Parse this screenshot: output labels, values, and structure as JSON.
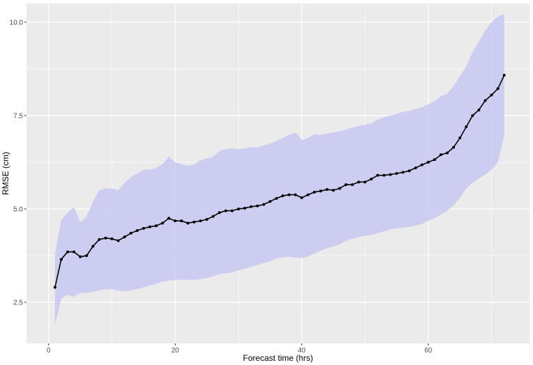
{
  "colors": {
    "panel": "#ebebeb",
    "grid": "#ffffff",
    "ribbon": "#c8c8f2",
    "line": "#000000"
  },
  "chart_data": {
    "type": "line",
    "title": "",
    "xlabel": "Forecast time (hrs)",
    "ylabel": "RMSE (cm)",
    "xlim": [
      -3.5,
      76
    ],
    "ylim": [
      1.4,
      10.5
    ],
    "x_ticks": [
      0,
      20,
      40,
      60
    ],
    "y_ticks": [
      2.5,
      5.0,
      7.5,
      10.0
    ],
    "x_tick_labels": [
      "0",
      "20",
      "40",
      "60"
    ],
    "y_tick_labels": [
      "2.5",
      "5.0",
      "7.5",
      "10.0"
    ],
    "grid": true,
    "legend": "none",
    "series": [
      {
        "x": [
          1,
          2,
          3,
          4,
          5,
          6,
          7,
          8,
          9,
          10,
          11,
          12,
          13,
          14,
          15,
          16,
          17,
          18,
          19,
          20,
          21,
          22,
          23,
          24,
          25,
          26,
          27,
          28,
          29,
          30,
          31,
          32,
          33,
          34,
          35,
          36,
          37,
          38,
          39,
          40,
          41,
          42,
          43,
          44,
          45,
          46,
          47,
          48,
          49,
          50,
          51,
          52,
          53,
          54,
          55,
          56,
          57,
          58,
          59,
          60,
          61,
          62,
          63,
          64,
          65,
          66,
          67,
          68,
          69,
          70,
          71,
          72
        ],
        "y": [
          2.9,
          3.65,
          3.85,
          3.85,
          3.72,
          3.75,
          4.0,
          4.18,
          4.22,
          4.2,
          4.15,
          4.25,
          4.35,
          4.42,
          4.48,
          4.52,
          4.55,
          4.62,
          4.75,
          4.68,
          4.68,
          4.62,
          4.65,
          4.68,
          4.72,
          4.8,
          4.9,
          4.95,
          4.95,
          5.0,
          5.02,
          5.06,
          5.08,
          5.12,
          5.2,
          5.28,
          5.35,
          5.38,
          5.38,
          5.3,
          5.38,
          5.45,
          5.48,
          5.52,
          5.5,
          5.55,
          5.65,
          5.65,
          5.72,
          5.72,
          5.8,
          5.9,
          5.9,
          5.92,
          5.95,
          5.98,
          6.02,
          6.1,
          6.18,
          6.25,
          6.32,
          6.45,
          6.5,
          6.65,
          6.9,
          7.2,
          7.5,
          7.65,
          7.9,
          8.05,
          8.22,
          8.58
        ],
        "lower": [
          1.9,
          2.6,
          2.7,
          2.65,
          2.75,
          2.75,
          2.78,
          2.82,
          2.85,
          2.85,
          2.82,
          2.8,
          2.82,
          2.85,
          2.9,
          2.95,
          3.0,
          3.05,
          3.08,
          3.1,
          3.1,
          3.1,
          3.1,
          3.12,
          3.15,
          3.2,
          3.25,
          3.28,
          3.3,
          3.35,
          3.4,
          3.45,
          3.5,
          3.55,
          3.6,
          3.68,
          3.7,
          3.72,
          3.7,
          3.68,
          3.72,
          3.8,
          3.88,
          3.95,
          4.0,
          4.05,
          4.15,
          4.2,
          4.25,
          4.28,
          4.3,
          4.35,
          4.4,
          4.45,
          4.48,
          4.5,
          4.52,
          4.55,
          4.6,
          4.68,
          4.75,
          4.85,
          4.95,
          5.1,
          5.3,
          5.55,
          5.7,
          5.82,
          5.92,
          6.05,
          6.25,
          6.95
        ],
        "upper": [
          3.8,
          4.7,
          4.9,
          5.05,
          4.65,
          4.8,
          5.2,
          5.5,
          5.55,
          5.55,
          5.5,
          5.7,
          5.85,
          5.95,
          6.05,
          6.05,
          6.1,
          6.2,
          6.4,
          6.25,
          6.2,
          6.15,
          6.2,
          6.3,
          6.35,
          6.4,
          6.55,
          6.6,
          6.62,
          6.6,
          6.62,
          6.65,
          6.65,
          6.7,
          6.75,
          6.82,
          6.9,
          6.98,
          7.05,
          6.85,
          6.9,
          7.0,
          6.98,
          7.02,
          7.05,
          7.08,
          7.12,
          7.18,
          7.22,
          7.25,
          7.3,
          7.38,
          7.45,
          7.5,
          7.55,
          7.6,
          7.62,
          7.68,
          7.72,
          7.8,
          7.88,
          8.02,
          8.08,
          8.3,
          8.55,
          8.82,
          9.2,
          9.48,
          9.78,
          10.0,
          10.15,
          10.22
        ]
      }
    ]
  }
}
